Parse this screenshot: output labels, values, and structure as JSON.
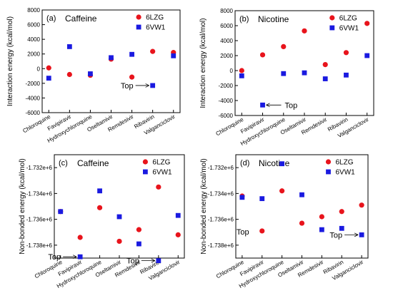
{
  "chart_data": [
    {
      "panel_label": "(a)",
      "title": "Caffeine",
      "type": "scatter",
      "ylabel": "Interaction energy (kcal/mol)",
      "categories": [
        "Chloroquine",
        "Favipiravir",
        "Hydroxychloroquine",
        "Oseltamivir",
        "Remdesivir",
        "Ribavirin",
        "Valganciclovir"
      ],
      "ylim": [
        -6000,
        8000
      ],
      "yticks": [
        "-6000",
        "-4000",
        "-2000",
        "0",
        "2000",
        "4000",
        "6000",
        "8000"
      ],
      "yticks_values": [
        -6000,
        -4000,
        -2000,
        0,
        2000,
        4000,
        6000,
        8000
      ],
      "series": [
        {
          "name": "6LZG",
          "marker": "circle",
          "color": "#e8141c",
          "values": [
            100,
            -800,
            -900,
            1300,
            -1150,
            2350,
            2200
          ]
        },
        {
          "name": "6VW1",
          "marker": "square",
          "color": "#1a1ae0",
          "values": [
            -1300,
            3000,
            -700,
            1500,
            1950,
            -2300,
            1750
          ]
        }
      ],
      "annotation": {
        "text": "Top",
        "category": "Ribavirin",
        "value": -2300
      },
      "legend": "top-right"
    },
    {
      "panel_label": "(b)",
      "title": "Nicotine",
      "type": "scatter",
      "ylabel": "Interaction energy (kcal/mol)",
      "categories": [
        "Chloroquine",
        "Favipiravir",
        "Hydroxychloroquine",
        "Oseltamivir",
        "Remdesivir",
        "Ribavirin",
        "Valganciclovir"
      ],
      "ylim": [
        -6000,
        8000
      ],
      "yticks": [
        "-6000",
        "-4000",
        "-2000",
        "0",
        "2000",
        "4000",
        "6000",
        "8000"
      ],
      "yticks_values": [
        -6000,
        -4000,
        -2000,
        0,
        2000,
        4000,
        6000,
        8000
      ],
      "series": [
        {
          "name": "6LZG",
          "marker": "circle",
          "color": "#e8141c",
          "values": [
            0,
            2100,
            3200,
            5300,
            800,
            2400,
            6300
          ]
        },
        {
          "name": "6VW1",
          "marker": "square",
          "color": "#1a1ae0",
          "values": [
            -700,
            -4600,
            -400,
            -300,
            -1100,
            -600,
            2000
          ]
        }
      ],
      "annotation": {
        "text": "Top",
        "category": "Favipiravir",
        "value": -4600
      },
      "legend": "top-right"
    },
    {
      "panel_label": "(c)",
      "title": "Caffeine",
      "type": "scatter",
      "ylabel": "Non-bonded energy (kcal/mol)",
      "categories": [
        "Chloroquine",
        "Favipiravir",
        "Hydroxychloroquine",
        "Oseltamivir",
        "Remdesivir",
        "Ribavirin",
        "Valganciclovir"
      ],
      "ylim": [
        -1739000,
        -1731000
      ],
      "yticks": [
        "-1.738e+6",
        "-1.736e+6",
        "-1.734e+6",
        "-1.732e+6"
      ],
      "yticks_values": [
        -1738000,
        -1736000,
        -1734000,
        -1732000
      ],
      "series": [
        {
          "name": "6LZG",
          "marker": "circle",
          "color": "#e8141c",
          "values": [
            -1735400,
            -1737400,
            -1735100,
            -1737700,
            -1736800,
            -1733500,
            -1737200
          ]
        },
        {
          "name": "6VW1",
          "marker": "square",
          "color": "#1a1ae0",
          "values": [
            -1735400,
            -1738900,
            -1733800,
            -1735800,
            -1737900,
            -1739200,
            -1735700
          ]
        }
      ],
      "annotations": [
        {
          "text": "Top",
          "category": "Favipiravir",
          "value": -1738900,
          "side": "left"
        },
        {
          "text": "Top",
          "category": "Ribavirin",
          "value": -1739200,
          "side": "left"
        }
      ],
      "legend": "top-right"
    },
    {
      "panel_label": "(d)",
      "title": "Nicotine",
      "type": "scatter",
      "ylabel": "Non-bonded energy (kcal/mol)",
      "categories": [
        "Chloroquine",
        "Favipiravir",
        "Hydroxychloroquine",
        "Oseltamivir",
        "Remdesivir",
        "Ribavirin",
        "Valganciclovir"
      ],
      "ylim": [
        -1739000,
        -1731000
      ],
      "yticks": [
        "-1.738e+6",
        "-1.736e+6",
        "-1.734e+6",
        "-1.732e+6"
      ],
      "yticks_values": [
        -1738000,
        -1736000,
        -1734000,
        -1732000
      ],
      "series": [
        {
          "name": "6LZG",
          "marker": "circle",
          "color": "#e8141c",
          "values": [
            -1734200,
            -1736900,
            -1733800,
            -1736300,
            -1735800,
            -1735400,
            -1734900
          ]
        },
        {
          "name": "6VW1",
          "marker": "square",
          "color": "#1a1ae0",
          "values": [
            -1734300,
            -1734400,
            -1731700,
            -1734100,
            -1736800,
            -1736700,
            -1737200
          ]
        }
      ],
      "annotations": [
        {
          "text": "Top",
          "category": "Chloroquine",
          "value": -1734300,
          "side": "below"
        },
        {
          "text": "Top",
          "category": "Valganciclovir",
          "value": -1737200,
          "side": "left"
        }
      ],
      "legend": "top-right"
    }
  ]
}
